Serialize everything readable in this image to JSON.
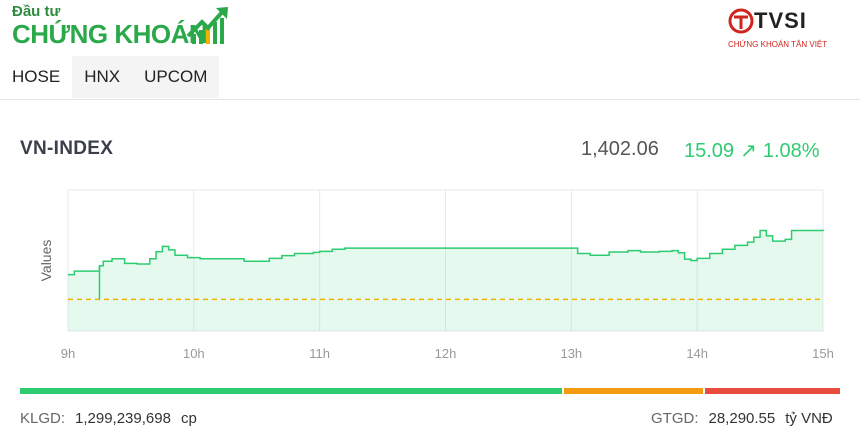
{
  "brand": {
    "line1": "Đầu tư",
    "line2": "CHỨNG KHOÁN",
    "icon": "chart-up-arrow-icon",
    "color": "#2aa84a"
  },
  "partner": {
    "name": "TVSI",
    "subtitle": "CHỨNG KHOÁN TÂN VIỆT",
    "color": "#d0251e"
  },
  "tabs": [
    {
      "label": "HOSE",
      "active": true
    },
    {
      "label": "HNX",
      "active": false
    },
    {
      "label": "UPCOM",
      "active": false
    }
  ],
  "index": {
    "name": "VN-INDEX",
    "value": "1,402.06",
    "change": "15.09",
    "arrow": "↗",
    "percent": "1.08%",
    "up_color": "#2ecc71"
  },
  "chart_data": {
    "type": "area",
    "ylabel": "Values",
    "x_ticks": [
      "9h",
      "10h",
      "11h",
      "12h",
      "13h",
      "14h",
      "15h"
    ],
    "reference_value": 1386.97,
    "ylim": [
      1378,
      1418
    ],
    "line_color": "#2ecc71",
    "reference_color": "#f0b400",
    "series": [
      {
        "values": [
          [
            9.0,
            1394.0
          ],
          [
            9.05,
            1395.0
          ],
          [
            9.17,
            1395.0
          ],
          [
            9.25,
            1396.5
          ],
          [
            9.28,
            1397.8
          ],
          [
            9.35,
            1398.5
          ],
          [
            9.45,
            1397.2
          ],
          [
            9.55,
            1397.0
          ],
          [
            9.65,
            1398.5
          ],
          [
            9.7,
            1400.5
          ],
          [
            9.75,
            1402.0
          ],
          [
            9.8,
            1401.0
          ],
          [
            9.85,
            1399.5
          ],
          [
            9.95,
            1398.8
          ],
          [
            10.05,
            1398.5
          ],
          [
            10.2,
            1398.5
          ],
          [
            10.3,
            1398.5
          ],
          [
            10.4,
            1397.8
          ],
          [
            10.5,
            1397.8
          ],
          [
            10.6,
            1398.6
          ],
          [
            10.7,
            1399.4
          ],
          [
            10.8,
            1400.0
          ],
          [
            10.95,
            1400.3
          ],
          [
            11.0,
            1400.6
          ],
          [
            11.1,
            1401.2
          ],
          [
            11.2,
            1401.5
          ],
          [
            11.35,
            1401.5
          ],
          [
            11.5,
            1401.5
          ],
          [
            12.0,
            1401.5
          ],
          [
            12.5,
            1401.5
          ],
          [
            13.0,
            1401.5
          ],
          [
            13.05,
            1400.0
          ],
          [
            13.15,
            1399.5
          ],
          [
            13.3,
            1400.4
          ],
          [
            13.45,
            1400.8
          ],
          [
            13.55,
            1400.4
          ],
          [
            13.7,
            1400.6
          ],
          [
            13.8,
            1400.8
          ],
          [
            13.85,
            1400.2
          ],
          [
            13.9,
            1398.4
          ],
          [
            13.95,
            1398.0
          ],
          [
            14.0,
            1398.6
          ],
          [
            14.1,
            1400.0
          ],
          [
            14.2,
            1401.2
          ],
          [
            14.3,
            1402.3
          ],
          [
            14.4,
            1403.2
          ],
          [
            14.45,
            1404.6
          ],
          [
            14.5,
            1406.5
          ],
          [
            14.55,
            1405.0
          ],
          [
            14.6,
            1403.5
          ],
          [
            14.7,
            1404.0
          ],
          [
            14.75,
            1406.5
          ],
          [
            15.0,
            1406.8
          ]
        ]
      }
    ]
  },
  "progress": {
    "green_pct": 66.3,
    "orange_pct": 17.2,
    "red_pct": 16.5,
    "colors": [
      "#2ecc71",
      "#f39c12",
      "#e74c3c"
    ]
  },
  "stats": {
    "klgd_label": "KLGD:",
    "klgd_value": "1,299,239,698",
    "klgd_unit": "cp",
    "gtgd_label": "GTGD:",
    "gtgd_value": "28,290.55",
    "gtgd_unit": "tỷ VNĐ"
  }
}
